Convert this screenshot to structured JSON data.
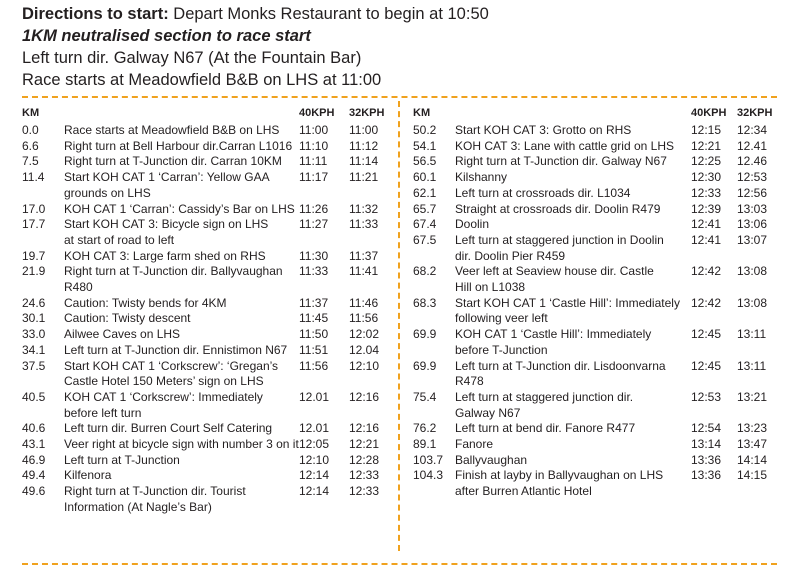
{
  "intro": {
    "directions_label": "Directions to start:",
    "directions_text": " Depart Monks Restaurant to begin at 10:50",
    "neutralised": "1KM neutralised section to race start",
    "turn": "Left turn dir. Galway N67 (At the Fountain Bar)",
    "race_start": "Race starts at Meadowfield B&B on LHS at 11:00"
  },
  "table": {
    "headers": {
      "km": "KM",
      "kph40": "40KPH",
      "kph32": "32KPH"
    },
    "left_rows": [
      {
        "km": "0.0",
        "desc": "Race starts at Meadowfield B&B on LHS",
        "t40": "11:00",
        "t32": "11:00"
      },
      {
        "km": "6.6",
        "desc": "Right turn at Bell Harbour dir.Carran L1016",
        "t40": "11:10",
        "t32": "11:12"
      },
      {
        "km": "7.5",
        "desc": "Right turn at T-Junction dir. Carran 10KM",
        "t40": "11:11",
        "t32": "11:14"
      },
      {
        "km": "11.4",
        "desc": "Start KOH CAT 1 ‘Carran’: Yellow GAA\ngrounds on LHS",
        "t40": "11:17",
        "t32": "11:21"
      },
      {
        "km": "17.0",
        "desc": "KOH CAT 1 ‘Carran’: Cassidy’s Bar on LHS",
        "t40": "11:26",
        "t32": "11:32"
      },
      {
        "km": "17.7",
        "desc": "Start KOH CAT 3: Bicycle sign on LHS\nat start of road to left",
        "t40": "11:27",
        "t32": "11:33"
      },
      {
        "km": "19.7",
        "desc": "KOH CAT 3: Large farm shed on RHS",
        "t40": "11:30",
        "t32": "11:37"
      },
      {
        "km": "21.9",
        "desc": "Right turn at T-Junction dir. Ballyvaughan\nR480",
        "t40": "11:33",
        "t32": "11:41"
      },
      {
        "km": "24.6",
        "desc": "Caution: Twisty bends for 4KM",
        "t40": "11:37",
        "t32": "11:46"
      },
      {
        "km": "30.1",
        "desc": "Caution: Twisty descent",
        "t40": "11:45",
        "t32": "11:56"
      },
      {
        "km": "33.0",
        "desc": "Ailwee Caves on LHS",
        "t40": "11:50",
        "t32": "12:02"
      },
      {
        "km": "34.1",
        "desc": "Left turn at T-Junction dir. Ennistimon N67",
        "t40": "11:51",
        "t32": "12.04"
      },
      {
        "km": "37.5",
        "desc": "Start KOH CAT 1 ‘Corkscrew’: ‘Gregan’s\nCastle Hotel 150 Meters’ sign on LHS",
        "t40": "11:56",
        "t32": "12:10"
      },
      {
        "km": "40.5",
        "desc": "KOH CAT 1 ‘Corkscrew’: Immediately\nbefore left turn",
        "t40": "12.01",
        "t32": "12:16"
      },
      {
        "km": "40.6",
        "desc": "Left turn dir. Burren Court Self Catering",
        "t40": "12.01",
        "t32": "12:16"
      },
      {
        "km": "43.1",
        "desc": "Veer right at bicycle sign with number 3 on it",
        "t40": "12:05",
        "t32": "12:21"
      },
      {
        "km": "46.9",
        "desc": "Left turn at T-Junction",
        "t40": "12:10",
        "t32": "12:28"
      },
      {
        "km": "49.4",
        "desc": "Kilfenora",
        "t40": "12:14",
        "t32": "12:33"
      },
      {
        "km": "49.6",
        "desc": "Right turn at T-Junction dir. Tourist\nInformation (At Nagle’s Bar)",
        "t40": "12:14",
        "t32": "12:33"
      }
    ],
    "right_rows": [
      {
        "km": "50.2",
        "desc": "Start KOH CAT 3: Grotto on RHS",
        "t40": "12:15",
        "t32": "12:34"
      },
      {
        "km": "54.1",
        "desc": "KOH CAT 3: Lane with cattle grid on LHS",
        "t40": "12:21",
        "t32": "12.41"
      },
      {
        "km": "56.5",
        "desc": "Right turn at T-Junction dir. Galway N67",
        "t40": "12:25",
        "t32": "12.46"
      },
      {
        "km": "60.1",
        "desc": "Kilshanny",
        "t40": "12:30",
        "t32": "12:53"
      },
      {
        "km": "62.1",
        "desc": "Left turn at crossroads dir. L1034",
        "t40": "12:33",
        "t32": "12:56"
      },
      {
        "km": "65.7",
        "desc": "Straight at crossroads dir. Doolin R479",
        "t40": "12:39",
        "t32": "13:03"
      },
      {
        "km": "67.4",
        "desc": "Doolin",
        "t40": "12:41",
        "t32": "13:06"
      },
      {
        "km": "67.5",
        "desc": "Left turn at staggered junction in Doolin\ndir. Doolin Pier R459",
        "t40": "12:41",
        "t32": "13:07"
      },
      {
        "km": "68.2",
        "desc": "Veer left at Seaview house dir. Castle\nHill on L1038",
        "t40": "12:42",
        "t32": "13:08"
      },
      {
        "km": "68.3",
        "desc": "Start KOH CAT 1 ‘Castle Hill’: Immediately\nfollowing veer left",
        "t40": "12:42",
        "t32": "13:08"
      },
      {
        "km": "69.9",
        "desc": "KOH CAT 1 ‘Castle Hill’: Immediately\nbefore T-Junction",
        "t40": "12:45",
        "t32": "13:11"
      },
      {
        "km": "69.9",
        "desc": "Left turn at T-Junction dir. Lisdoonvarna\nR478",
        "t40": "12:45",
        "t32": "13:11"
      },
      {
        "km": "75.4",
        "desc": "Left turn at staggered junction dir.\nGalway N67",
        "t40": "12:53",
        "t32": "13:21"
      },
      {
        "km": "76.2",
        "desc": "Left turn at bend dir. Fanore R477",
        "t40": "12:54",
        "t32": "13:23"
      },
      {
        "km": "89.1",
        "desc": "Fanore",
        "t40": "13:14",
        "t32": "13:47"
      },
      {
        "km": "103.7",
        "desc": "Ballyvaughan",
        "t40": "13:36",
        "t32": "14:14"
      },
      {
        "km": "104.3",
        "desc": "Finish at layby in Ballyvaughan on LHS\nafter Burren Atlantic Hotel",
        "t40": "13:36",
        "t32": "14:15"
      }
    ]
  },
  "colors": {
    "accent_dash": "#f0a21e",
    "text": "#231f20"
  }
}
